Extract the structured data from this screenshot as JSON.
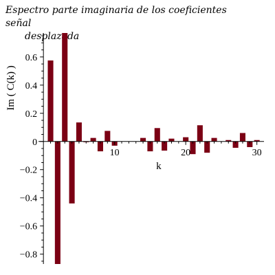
{
  "chart_data": {
    "type": "bar",
    "title_line1": "Espectro parte imaginaria de los coeficientes señal",
    "title_line2": "desplazada",
    "xlabel": "k",
    "ylabel": "Im ( C(k) )",
    "xlim": [
      -0.5,
      31
    ],
    "ylim": [
      -0.87,
      0.77
    ],
    "x_ticks": [
      10,
      20,
      30
    ],
    "y_ticks": [
      0.6,
      0.4,
      0.2,
      0,
      -0.2,
      -0.4,
      -0.6,
      -0.8
    ],
    "y_tick_labels": [
      "0.6",
      "0.4",
      "0.2",
      "0",
      "−0.2",
      "−0.4",
      "−0.6",
      "−0.8"
    ],
    "bar_color": "#7b0014",
    "x": [
      1,
      2,
      3,
      4,
      5,
      6,
      7,
      8,
      9,
      10,
      11,
      12,
      13,
      14,
      15,
      16,
      17,
      18,
      19,
      20,
      21,
      22,
      23,
      24,
      25,
      26,
      27,
      28,
      29,
      30
    ],
    "values": [
      0.575,
      -0.87,
      0.77,
      -0.44,
      0.135,
      -0.005,
      0.025,
      -0.07,
      0.075,
      -0.03,
      0,
      0,
      0,
      0.025,
      -0.07,
      0.095,
      -0.065,
      0.02,
      0,
      0.03,
      -0.09,
      0.115,
      -0.08,
      0.025,
      0,
      0.01,
      -0.045,
      0.06,
      -0.04,
      0.01
    ]
  }
}
